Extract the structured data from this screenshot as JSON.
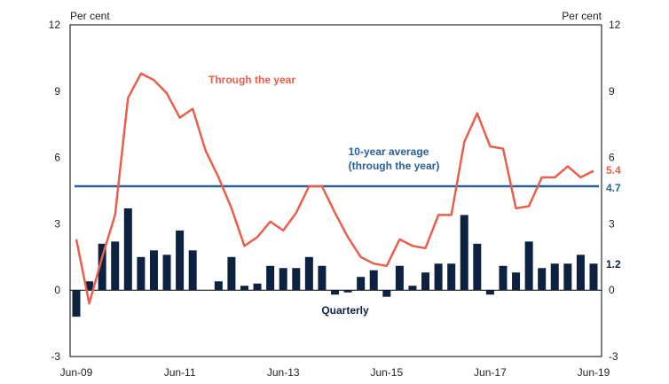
{
  "chart_data": {
    "type": "bar+line",
    "title": "",
    "unit_left": "Per cent",
    "unit_right": "Per cent",
    "ylim": [
      -3,
      12
    ],
    "yticks": [
      -3,
      0,
      3,
      6,
      9,
      12
    ],
    "xtick_labels": [
      "Jun-09",
      "Jun-11",
      "Jun-13",
      "Jun-15",
      "Jun-17",
      "Jun-19"
    ],
    "grid": false,
    "colors": {
      "bars": "#0d2240",
      "line": "#e8604c",
      "average": "#2a6099"
    },
    "bars": {
      "name": "Quarterly",
      "values": [
        -1.2,
        0.4,
        2.1,
        2.2,
        3.7,
        1.5,
        1.8,
        1.6,
        2.7,
        1.8,
        0.0,
        0.4,
        1.5,
        0.2,
        0.3,
        1.1,
        1.0,
        1.0,
        1.5,
        1.1,
        -0.2,
        -0.1,
        0.6,
        0.9,
        -0.3,
        1.1,
        0.2,
        0.8,
        1.2,
        1.2,
        3.4,
        2.1,
        -0.2,
        1.1,
        0.8,
        2.2,
        1.0,
        1.2,
        1.2,
        1.6,
        1.2
      ]
    },
    "line": {
      "name": "Through the year",
      "values": [
        2.3,
        -0.6,
        1.5,
        3.4,
        8.7,
        9.8,
        9.5,
        8.9,
        7.8,
        8.2,
        6.3,
        5.1,
        3.7,
        2.0,
        2.4,
        3.1,
        2.7,
        3.5,
        4.7,
        4.7,
        3.5,
        2.4,
        1.5,
        1.2,
        1.1,
        2.3,
        2.0,
        1.9,
        3.4,
        3.4,
        6.7,
        8.0,
        6.5,
        6.4,
        3.7,
        3.8,
        5.1,
        5.1,
        5.6,
        5.1,
        5.4
      ]
    },
    "average": {
      "name": "10-year average (through the year)",
      "value": 4.7
    },
    "annotations": {
      "line_label": "Through the year",
      "average_label_1": "10-year average",
      "average_label_2": "(through the year)",
      "bars_label": "Quarterly",
      "last_line_value": "5.4",
      "average_value": "4.7",
      "last_bar_value": "1.2"
    }
  }
}
